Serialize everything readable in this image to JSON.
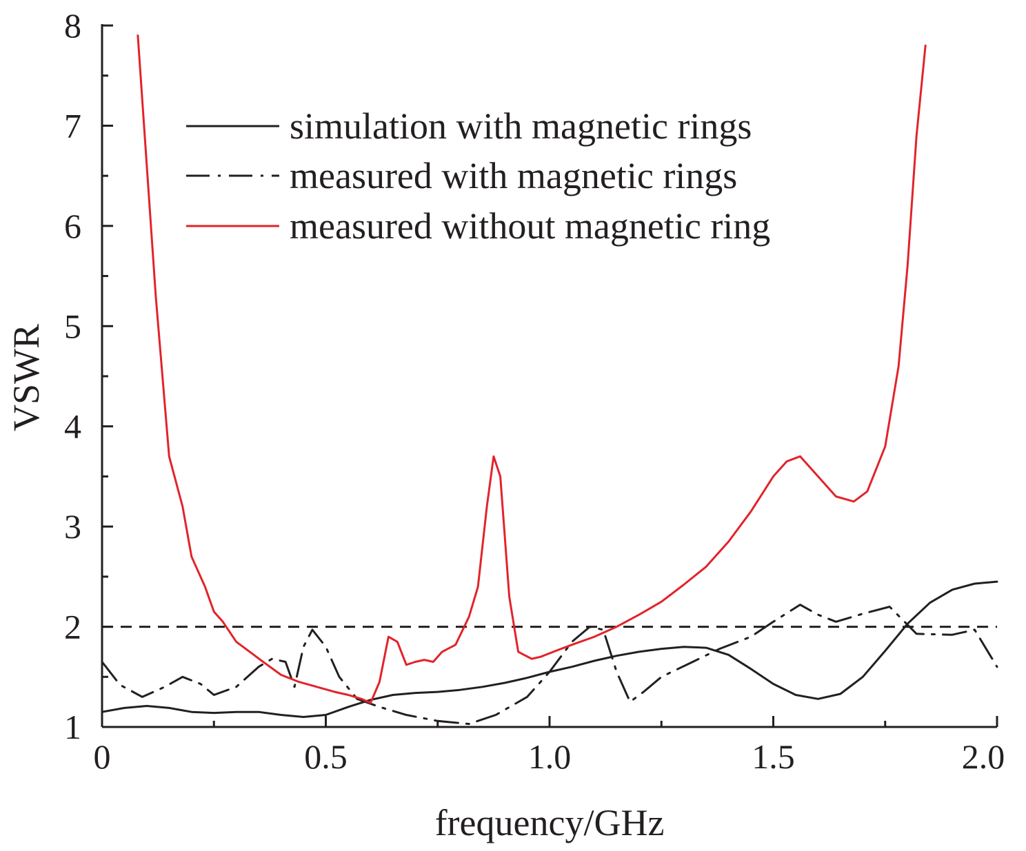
{
  "chart_data": {
    "type": "line",
    "title": "",
    "xlabel": "frequency/GHz",
    "ylabel": "VSWR",
    "xlim": [
      0,
      2.0
    ],
    "ylim": [
      1,
      8
    ],
    "x_ticks": [
      0,
      0.5,
      1.0,
      1.5,
      2.0
    ],
    "x_tick_labels": [
      "0",
      "0.5",
      "1.0",
      "1.5",
      "2.0"
    ],
    "y_ticks": [
      1,
      2,
      3,
      4,
      5,
      6,
      7,
      8
    ],
    "y_tick_labels": [
      "1",
      "2",
      "3",
      "4",
      "5",
      "6",
      "7",
      "8"
    ],
    "grid": false,
    "legend_position": "top-center",
    "reference_line": {
      "y": 2,
      "style": "dashed",
      "color": "#231f20"
    },
    "series": [
      {
        "name": "simulation with magnetic rings",
        "style": "solid",
        "color": "#231f20",
        "points": [
          [
            0.0,
            1.15
          ],
          [
            0.05,
            1.19
          ],
          [
            0.1,
            1.21
          ],
          [
            0.15,
            1.19
          ],
          [
            0.2,
            1.15
          ],
          [
            0.25,
            1.14
          ],
          [
            0.3,
            1.15
          ],
          [
            0.35,
            1.15
          ],
          [
            0.4,
            1.12
          ],
          [
            0.45,
            1.1
          ],
          [
            0.5,
            1.12
          ],
          [
            0.55,
            1.2
          ],
          [
            0.6,
            1.27
          ],
          [
            0.65,
            1.32
          ],
          [
            0.7,
            1.34
          ],
          [
            0.75,
            1.35
          ],
          [
            0.8,
            1.37
          ],
          [
            0.85,
            1.4
          ],
          [
            0.9,
            1.44
          ],
          [
            0.95,
            1.49
          ],
          [
            1.0,
            1.55
          ],
          [
            1.05,
            1.6
          ],
          [
            1.1,
            1.66
          ],
          [
            1.15,
            1.71
          ],
          [
            1.2,
            1.75
          ],
          [
            1.25,
            1.78
          ],
          [
            1.3,
            1.8
          ],
          [
            1.35,
            1.79
          ],
          [
            1.4,
            1.72
          ],
          [
            1.45,
            1.58
          ],
          [
            1.5,
            1.43
          ],
          [
            1.55,
            1.32
          ],
          [
            1.6,
            1.28
          ],
          [
            1.65,
            1.33
          ],
          [
            1.7,
            1.5
          ],
          [
            1.75,
            1.76
          ],
          [
            1.8,
            2.03
          ],
          [
            1.85,
            2.24
          ],
          [
            1.9,
            2.37
          ],
          [
            1.95,
            2.43
          ],
          [
            2.0,
            2.45
          ]
        ]
      },
      {
        "name": "measured with magnetic rings",
        "style": "dash-dot",
        "color": "#231f20",
        "points": [
          [
            0.0,
            1.65
          ],
          [
            0.04,
            1.42
          ],
          [
            0.09,
            1.3
          ],
          [
            0.14,
            1.4
          ],
          [
            0.18,
            1.5
          ],
          [
            0.22,
            1.43
          ],
          [
            0.25,
            1.32
          ],
          [
            0.3,
            1.4
          ],
          [
            0.35,
            1.6
          ],
          [
            0.38,
            1.68
          ],
          [
            0.41,
            1.65
          ],
          [
            0.43,
            1.4
          ],
          [
            0.45,
            1.8
          ],
          [
            0.47,
            1.97
          ],
          [
            0.5,
            1.8
          ],
          [
            0.53,
            1.5
          ],
          [
            0.57,
            1.28
          ],
          [
            0.62,
            1.2
          ],
          [
            0.68,
            1.12
          ],
          [
            0.75,
            1.06
          ],
          [
            0.82,
            1.03
          ],
          [
            0.88,
            1.12
          ],
          [
            0.95,
            1.3
          ],
          [
            1.0,
            1.55
          ],
          [
            1.05,
            1.85
          ],
          [
            1.09,
            2.0
          ],
          [
            1.12,
            1.97
          ],
          [
            1.15,
            1.55
          ],
          [
            1.18,
            1.25
          ],
          [
            1.21,
            1.35
          ],
          [
            1.25,
            1.5
          ],
          [
            1.32,
            1.65
          ],
          [
            1.38,
            1.78
          ],
          [
            1.45,
            1.9
          ],
          [
            1.5,
            2.05
          ],
          [
            1.56,
            2.22
          ],
          [
            1.6,
            2.12
          ],
          [
            1.64,
            2.05
          ],
          [
            1.7,
            2.13
          ],
          [
            1.76,
            2.2
          ],
          [
            1.82,
            1.93
          ],
          [
            1.9,
            1.92
          ],
          [
            1.95,
            1.97
          ],
          [
            2.0,
            1.6
          ]
        ]
      },
      {
        "name": "measured without magnetic ring",
        "style": "solid",
        "color": "#e2232a",
        "points": [
          [
            0.08,
            7.9
          ],
          [
            0.1,
            6.6
          ],
          [
            0.12,
            5.3
          ],
          [
            0.15,
            3.7
          ],
          [
            0.18,
            3.2
          ],
          [
            0.2,
            2.7
          ],
          [
            0.23,
            2.4
          ],
          [
            0.25,
            2.15
          ],
          [
            0.27,
            2.05
          ],
          [
            0.3,
            1.85
          ],
          [
            0.33,
            1.75
          ],
          [
            0.36,
            1.65
          ],
          [
            0.4,
            1.52
          ],
          [
            0.44,
            1.45
          ],
          [
            0.48,
            1.4
          ],
          [
            0.52,
            1.35
          ],
          [
            0.55,
            1.32
          ],
          [
            0.58,
            1.28
          ],
          [
            0.6,
            1.24
          ],
          [
            0.62,
            1.45
          ],
          [
            0.64,
            1.9
          ],
          [
            0.66,
            1.85
          ],
          [
            0.68,
            1.62
          ],
          [
            0.7,
            1.65
          ],
          [
            0.72,
            1.67
          ],
          [
            0.74,
            1.65
          ],
          [
            0.76,
            1.75
          ],
          [
            0.79,
            1.82
          ],
          [
            0.82,
            2.1
          ],
          [
            0.84,
            2.4
          ],
          [
            0.86,
            3.2
          ],
          [
            0.875,
            3.7
          ],
          [
            0.89,
            3.5
          ],
          [
            0.91,
            2.3
          ],
          [
            0.93,
            1.75
          ],
          [
            0.96,
            1.68
          ],
          [
            0.98,
            1.7
          ],
          [
            1.02,
            1.77
          ],
          [
            1.05,
            1.82
          ],
          [
            1.1,
            1.9
          ],
          [
            1.15,
            2.0
          ],
          [
            1.2,
            2.12
          ],
          [
            1.25,
            2.25
          ],
          [
            1.3,
            2.42
          ],
          [
            1.35,
            2.6
          ],
          [
            1.4,
            2.85
          ],
          [
            1.45,
            3.15
          ],
          [
            1.5,
            3.5
          ],
          [
            1.53,
            3.65
          ],
          [
            1.56,
            3.7
          ],
          [
            1.6,
            3.5
          ],
          [
            1.64,
            3.3
          ],
          [
            1.68,
            3.25
          ],
          [
            1.71,
            3.35
          ],
          [
            1.75,
            3.8
          ],
          [
            1.78,
            4.6
          ],
          [
            1.8,
            5.6
          ],
          [
            1.82,
            6.9
          ],
          [
            1.84,
            7.8
          ]
        ]
      }
    ]
  }
}
